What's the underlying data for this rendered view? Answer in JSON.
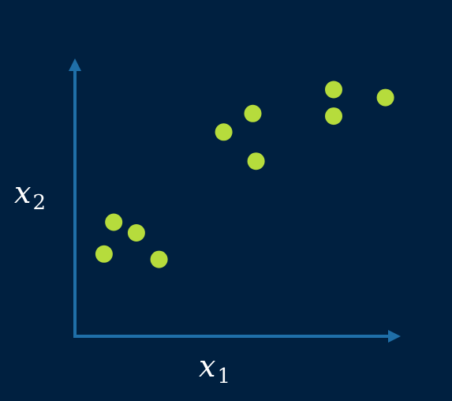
{
  "chart_data": {
    "type": "scatter",
    "title": "",
    "xlabel": {
      "base": "x",
      "sub": "1"
    },
    "ylabel": {
      "base": "x",
      "sub": "2"
    },
    "xlim": [
      0,
      10
    ],
    "ylim": [
      0,
      10
    ],
    "grid": false,
    "legend": "none",
    "points": [
      {
        "x": 1.2,
        "y": 4.3
      },
      {
        "x": 1.9,
        "y": 3.9
      },
      {
        "x": 0.9,
        "y": 3.1
      },
      {
        "x": 2.6,
        "y": 2.9
      },
      {
        "x": 4.6,
        "y": 7.7
      },
      {
        "x": 5.5,
        "y": 8.4
      },
      {
        "x": 5.6,
        "y": 6.6
      },
      {
        "x": 8.0,
        "y": 9.3
      },
      {
        "x": 8.0,
        "y": 8.3
      },
      {
        "x": 9.6,
        "y": 9.0
      }
    ]
  },
  "colors": {
    "background": "#002040",
    "axis": "#1f6fa8",
    "point": "#b6dc3c",
    "label": "#ffffff"
  }
}
